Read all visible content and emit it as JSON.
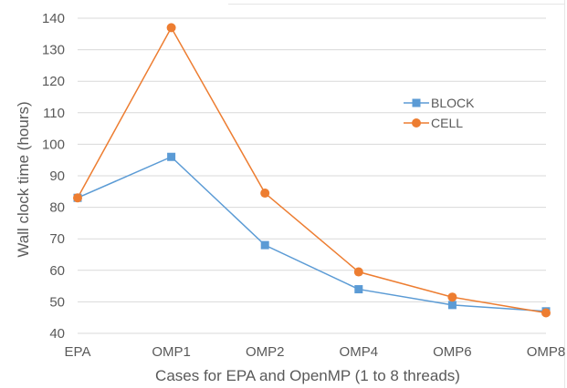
{
  "chart_data": {
    "type": "line",
    "categories": [
      "EPA",
      "OMP1",
      "OMP2",
      "OMP4",
      "OMP6",
      "OMP8"
    ],
    "series": [
      {
        "name": "BLOCK",
        "values": [
          83,
          96,
          68,
          54,
          49,
          47
        ],
        "color": "#5B9BD5",
        "marker": "square"
      },
      {
        "name": "CELL",
        "values": [
          83,
          137,
          84.5,
          59.5,
          51.5,
          46.5
        ],
        "color": "#ED7D31",
        "marker": "circle"
      }
    ],
    "xlabel": "Cases for EPA and OpenMP (1 to 8 threads)",
    "ylabel": "Wall clock time (hours)",
    "ylim": [
      40,
      140
    ],
    "yticks": [
      40,
      50,
      60,
      70,
      80,
      90,
      100,
      110,
      120,
      130,
      140
    ],
    "grid": true,
    "gridColor": "#d9d9d9",
    "legend": "upper-right-inside"
  }
}
